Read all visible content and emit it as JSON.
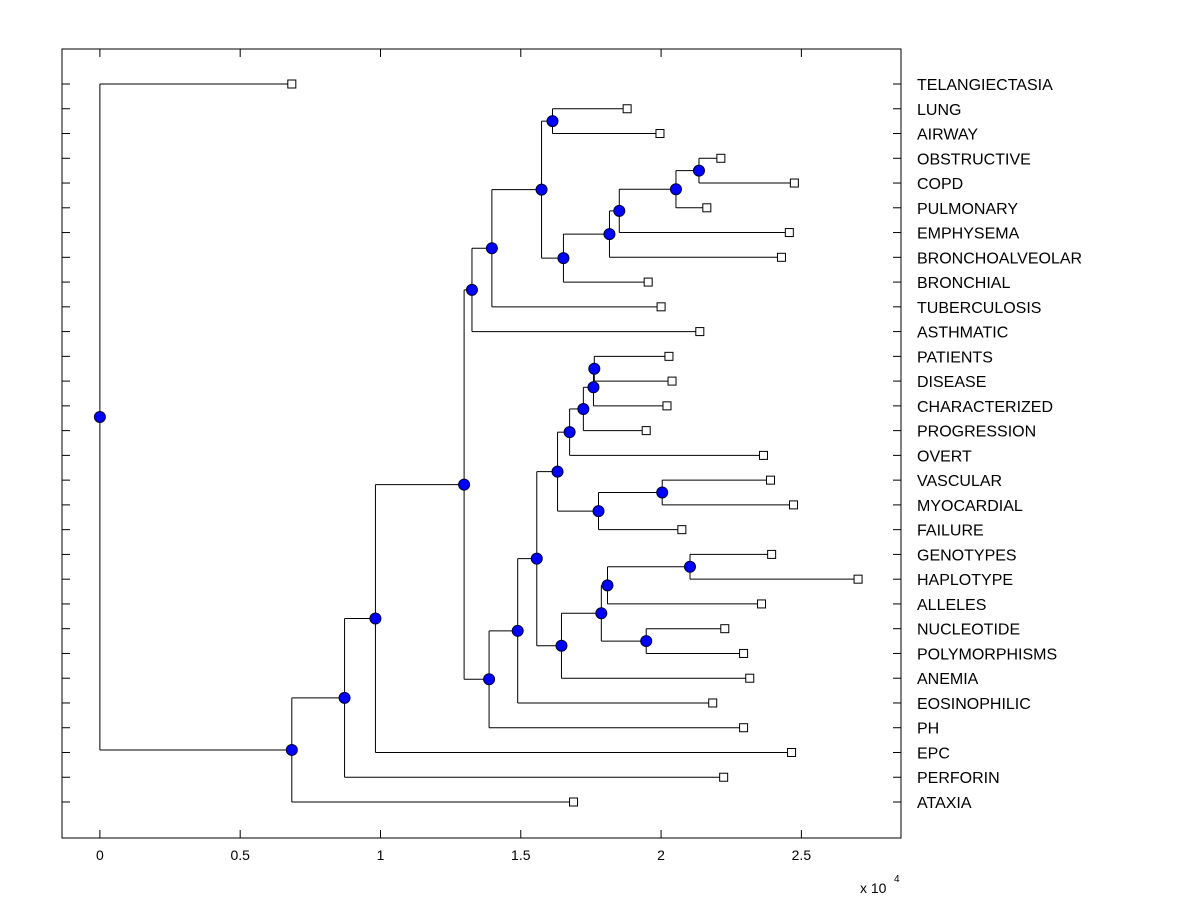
{
  "chart_data": {
    "type": "dendrogram",
    "title": "",
    "xlabel": "",
    "ylabel": "",
    "x_multiplier_label": "x 10",
    "x_multiplier_exponent": "4",
    "xlim": [
      -0.135,
      2.855
    ],
    "xticks": [
      0,
      0.5,
      1,
      1.5,
      2,
      2.5
    ],
    "xtick_labels": [
      "0",
      "0.5",
      "1",
      "1.5",
      "2",
      "2.5"
    ],
    "grid": false,
    "orientation": "left-to-right",
    "colors": {
      "internal_node_fill": "#0000ff",
      "internal_node_stroke": "#000033",
      "leaf_marker_fill": "#ffffff",
      "line": "#000000"
    },
    "leaves": [
      {
        "label": "TELANGIECTASIA",
        "value": 0.684
      },
      {
        "label": "LUNG",
        "value": 1.879
      },
      {
        "label": "AIRWAY",
        "value": 1.996
      },
      {
        "label": "OBSTRUCTIVE",
        "value": 2.213
      },
      {
        "label": "COPD",
        "value": 2.475
      },
      {
        "label": "PULMONARY",
        "value": 2.163
      },
      {
        "label": "EMPHYSEMA",
        "value": 2.457
      },
      {
        "label": "BRONCHOALVEOLAR",
        "value": 2.429
      },
      {
        "label": "BRONCHIAL",
        "value": 1.954
      },
      {
        "label": "TUBERCULOSIS",
        "value": 2.0
      },
      {
        "label": "ASTHMATIC",
        "value": 2.138
      },
      {
        "label": "PATIENTS",
        "value": 2.028
      },
      {
        "label": "DISEASE",
        "value": 2.039
      },
      {
        "label": "CHARACTERIZED",
        "value": 2.021
      },
      {
        "label": "PROGRESSION",
        "value": 1.947
      },
      {
        "label": "OVERT",
        "value": 2.365
      },
      {
        "label": "VASCULAR",
        "value": 2.39
      },
      {
        "label": "MYOCARDIAL",
        "value": 2.472
      },
      {
        "label": "FAILURE",
        "value": 2.074
      },
      {
        "label": "GENOTYPES",
        "value": 2.394
      },
      {
        "label": "HAPLOTYPE",
        "value": 2.702
      },
      {
        "label": "ALLELES",
        "value": 2.358
      },
      {
        "label": "NUCLEOTIDE",
        "value": 2.227
      },
      {
        "label": "POLYMORPHISMS",
        "value": 2.294
      },
      {
        "label": "ANEMIA",
        "value": 2.316
      },
      {
        "label": "EOSINOPHILIC",
        "value": 2.184
      },
      {
        "label": "PH",
        "value": 2.294
      },
      {
        "label": "EPC",
        "value": 2.465
      },
      {
        "label": "PERFORIN",
        "value": 2.223
      },
      {
        "label": "ATAXIA",
        "value": 1.688
      }
    ],
    "tree": {
      "value": 0.0,
      "children": [
        {
          "leaf": 0
        },
        {
          "value": 0.684,
          "children": [
            {
              "value": 0.872,
              "children": [
                {
                  "value": 0.982,
                  "children": [
                    {
                      "value": 1.298,
                      "children": [
                        {
                          "value": 1.326,
                          "children": [
                            {
                              "value": 1.397,
                              "children": [
                                {
                                  "value": 1.574,
                                  "children": [
                                    {
                                      "value": 1.613,
                                      "children": [
                                        {
                                          "leaf": 1
                                        },
                                        {
                                          "leaf": 2
                                        }
                                      ]
                                    },
                                    {
                                      "value": 1.652,
                                      "children": [
                                        {
                                          "value": 1.816,
                                          "children": [
                                            {
                                              "value": 1.851,
                                              "children": [
                                                {
                                                  "value": 2.053,
                                                  "children": [
                                                    {
                                                      "value": 2.135,
                                                      "children": [
                                                        {
                                                          "leaf": 3
                                                        },
                                                        {
                                                          "leaf": 4
                                                        }
                                                      ]
                                                    },
                                                    {
                                                      "leaf": 5
                                                    }
                                                  ]
                                                },
                                                {
                                                  "leaf": 6
                                                }
                                              ]
                                            },
                                            {
                                              "leaf": 7
                                            }
                                          ]
                                        },
                                        {
                                          "leaf": 8
                                        }
                                      ]
                                    }
                                  ]
                                },
                                {
                                  "leaf": 9
                                }
                              ]
                            },
                            {
                              "leaf": 10
                            }
                          ]
                        },
                        {
                          "value": 1.387,
                          "children": [
                            {
                              "value": 1.489,
                              "children": [
                                {
                                  "value": 1.557,
                                  "children": [
                                    {
                                      "value": 1.631,
                                      "children": [
                                        {
                                          "value": 1.674,
                                          "children": [
                                            {
                                              "value": 1.723,
                                              "children": [
                                                {
                                                  "value": 1.759,
                                                  "children": [
                                                    {
                                                      "value": 1.762,
                                                      "children": [
                                                        {
                                                          "leaf": 11
                                                        },
                                                        {
                                                          "leaf": 12
                                                        }
                                                      ]
                                                    },
                                                    {
                                                      "leaf": 13
                                                    }
                                                  ]
                                                },
                                                {
                                                  "leaf": 14
                                                }
                                              ]
                                            },
                                            {
                                              "leaf": 15
                                            }
                                          ]
                                        },
                                        {
                                          "value": 1.777,
                                          "children": [
                                            {
                                              "value": 2.004,
                                              "children": [
                                                {
                                                  "leaf": 16
                                                },
                                                {
                                                  "leaf": 17
                                                }
                                              ]
                                            },
                                            {
                                              "leaf": 18
                                            }
                                          ]
                                        }
                                      ]
                                    },
                                    {
                                      "value": 1.645,
                                      "children": [
                                        {
                                          "value": 1.787,
                                          "children": [
                                            {
                                              "value": 1.809,
                                              "children": [
                                                {
                                                  "value": 2.103,
                                                  "children": [
                                                    {
                                                      "leaf": 19
                                                    },
                                                    {
                                                      "leaf": 20
                                                    }
                                                  ]
                                                },
                                                {
                                                  "leaf": 21
                                                }
                                              ]
                                            },
                                            {
                                              "value": 1.947,
                                              "children": [
                                                {
                                                  "leaf": 22
                                                },
                                                {
                                                  "leaf": 23
                                                }
                                              ]
                                            }
                                          ]
                                        },
                                        {
                                          "leaf": 24
                                        }
                                      ]
                                    }
                                  ]
                                },
                                {
                                  "leaf": 25
                                }
                              ]
                            },
                            {
                              "leaf": 26
                            }
                          ]
                        }
                      ]
                    },
                    {
                      "leaf": 27
                    }
                  ]
                },
                {
                  "leaf": 28
                }
              ]
            },
            {
              "leaf": 29
            }
          ]
        }
      ]
    }
  }
}
